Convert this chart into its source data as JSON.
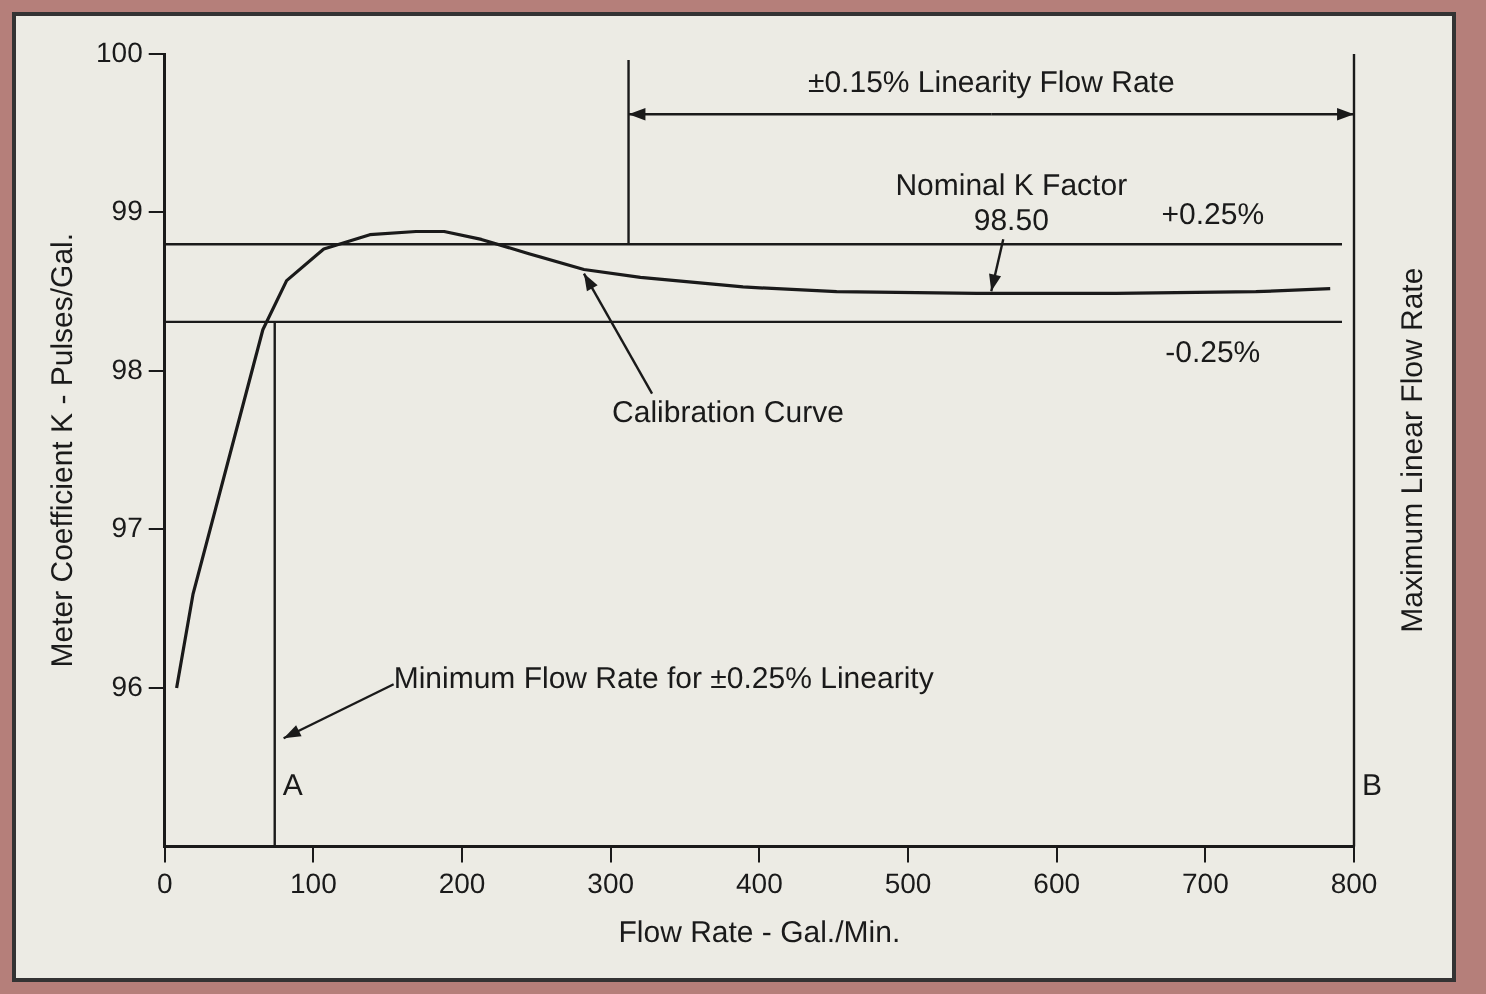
{
  "chart_data": {
    "type": "line",
    "xlabel": "Flow Rate - Gal./Min.",
    "ylabel": "Meter Coefficient K - Pulses/Gal.",
    "x": [
      8,
      19,
      66,
      82,
      107,
      138,
      169,
      188,
      213,
      245,
      282,
      320,
      389,
      452,
      546,
      640,
      734,
      784
    ],
    "series": [
      {
        "color": "#1a1a1a",
        "values": [
          96.0,
          96.59,
          98.26,
          98.57,
          98.77,
          98.86,
          98.88,
          98.88,
          98.83,
          98.74,
          98.64,
          98.59,
          98.53,
          98.5,
          98.49,
          98.49,
          98.5,
          98.52
        ]
      }
    ],
    "xlim": [
      0,
      800
    ],
    "xticks": [
      0,
      100,
      200,
      300,
      400,
      500,
      600,
      700,
      800
    ],
    "ylim": [
      95,
      100
    ],
    "yticks": [
      96,
      97,
      98,
      99,
      100
    ],
    "grid": false,
    "legend": false,
    "marker": "none",
    "line_style": "solid",
    "ref_lines": [
      {
        "axis": "y",
        "value": 98.8
      },
      {
        "axis": "y",
        "value": 98.31
      },
      {
        "axis": "x",
        "value": 74,
        "label": "A"
      },
      {
        "axis": "x",
        "value": 312
      },
      {
        "axis": "x",
        "value": 800,
        "label": "B"
      }
    ],
    "annotations": [
      {
        "text": "±0.15% Linearity Flow Rate",
        "x": 800,
        "y": 99.62
      },
      "Nominal K Factor",
      {
        "text": "98.50",
        "x": 556,
        "y": 98.49
      },
      {
        "text": "Calibration Curve",
        "x": 282,
        "y": 98.64
      },
      {
        "text": "Minimum Flow Rate for ±0.25% Linearity",
        "x": 80,
        "y": 95.67
      },
      {
        "text": "+0.25%",
        "x": 705,
        "y": 98.8
      },
      {
        "text": "-0.25%",
        "x": 705,
        "y": 98.31
      },
      "Maximum Linear Flow Rate"
    ]
  }
}
